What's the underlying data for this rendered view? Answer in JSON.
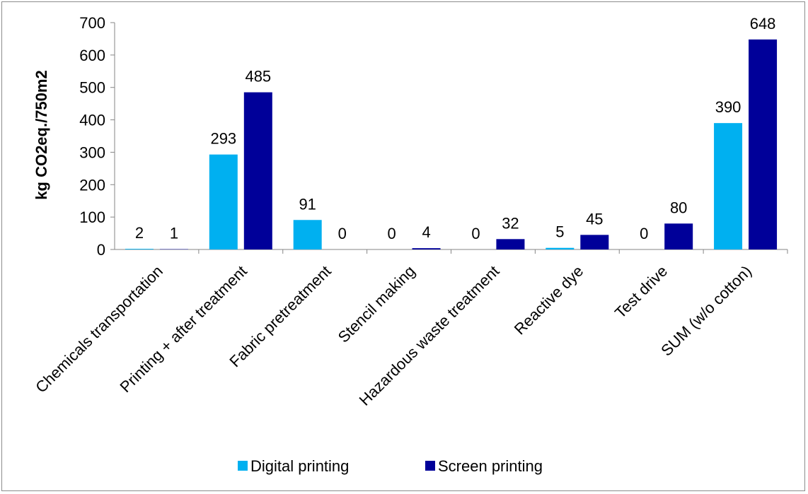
{
  "chart_data": {
    "type": "bar",
    "title": "",
    "xlabel": "",
    "ylabel": "kg CO2eq./750m2",
    "ylim": [
      0,
      700
    ],
    "yticks": [
      0,
      100,
      200,
      300,
      400,
      500,
      600,
      700
    ],
    "grid": false,
    "legend_position": "bottom",
    "categories": [
      "Chemicals transportation",
      "Printing + after treatment",
      "Fabric pretreatment",
      "Stencil making",
      "Hazardous waste treatment",
      "Reactive dye",
      "Test drive",
      "SUM (w/o cotton)"
    ],
    "series": [
      {
        "name": "Digital printing",
        "color": "#00b0f0",
        "values": [
          2,
          293,
          91,
          0,
          0,
          5,
          0,
          390
        ]
      },
      {
        "name": "Screen printing",
        "color": "#000099",
        "values": [
          1,
          485,
          0,
          4,
          32,
          45,
          80,
          648
        ]
      }
    ]
  }
}
